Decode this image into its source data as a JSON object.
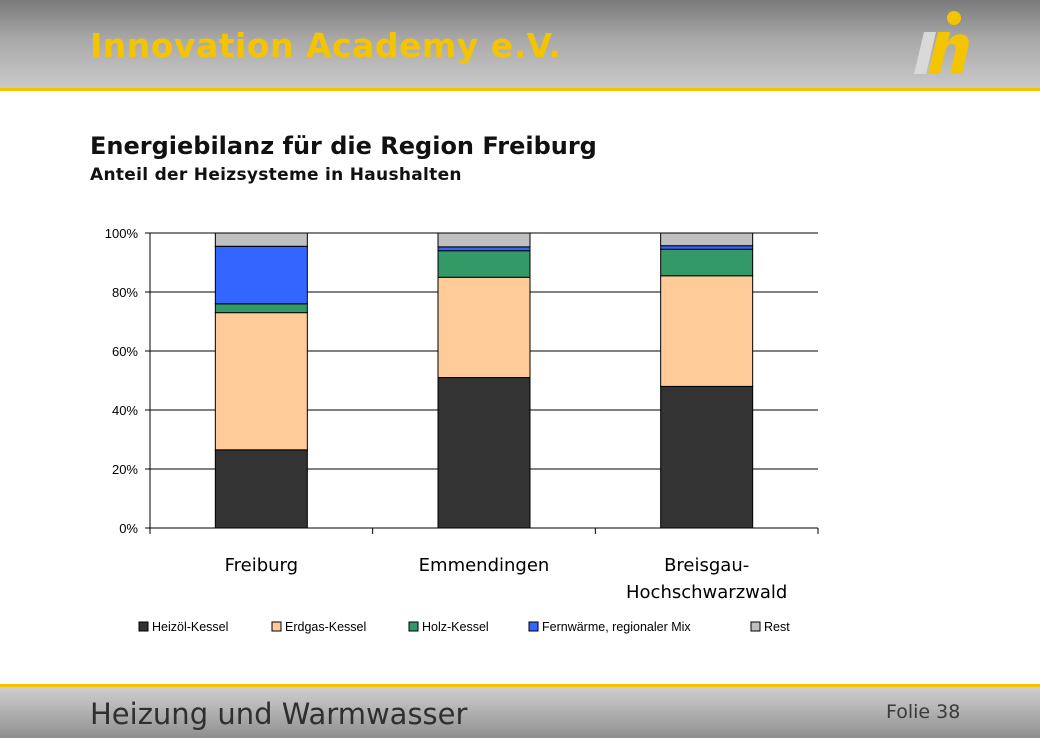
{
  "header": {
    "brand": "Innovation Academy e.V."
  },
  "slide": {
    "title": "Energiebilanz für die Region Freiburg",
    "subtitle": "Anteil der Heizsysteme in Haushalten"
  },
  "footer": {
    "title": "Heizung und Warmwasser",
    "slide_label": "Folie 38"
  },
  "colors": {
    "brand_yellow": "#f5c400",
    "heizoel": "#333333",
    "erdgas": "#ffcc99",
    "holz": "#339966",
    "fernwaerme": "#3366ff",
    "rest": "#c0c0c0"
  },
  "chart_data": {
    "type": "bar",
    "stacked": true,
    "categories": [
      [
        "Freiburg"
      ],
      [
        "Emmendingen"
      ],
      [
        "Breisgau-",
        "Hochschwarzwald"
      ]
    ],
    "series": [
      {
        "name": "Heizöl-Kessel",
        "color": "#333333",
        "values": [
          26.5,
          51,
          48
        ]
      },
      {
        "name": "Erdgas-Kessel",
        "color": "#ffcc99",
        "values": [
          46.5,
          34,
          37.5
        ]
      },
      {
        "name": "Holz-Kessel",
        "color": "#339966",
        "values": [
          3,
          9,
          9
        ]
      },
      {
        "name": "Fernwärme, regionaler Mix",
        "color": "#3366ff",
        "values": [
          19.5,
          1.3,
          1.2
        ]
      },
      {
        "name": "Rest",
        "color": "#c0c0c0",
        "values": [
          4.5,
          4.7,
          4.3
        ]
      }
    ],
    "yticks": [
      "0%",
      "20%",
      "40%",
      "60%",
      "80%",
      "100%"
    ],
    "ylim": [
      0,
      100
    ],
    "grid": true,
    "legend": "bottom"
  }
}
